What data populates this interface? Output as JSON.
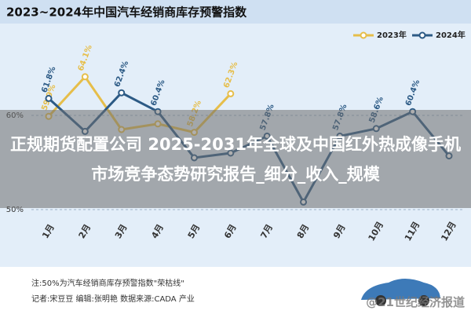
{
  "chart_data": {
    "type": "line",
    "title": "2023~2024年中国汽车经销商库存预警指数",
    "categories": [
      "1月",
      "2月",
      "3月",
      "4月",
      "5月",
      "6月",
      "7月",
      "8月",
      "9月",
      "10月",
      "11月",
      "12月"
    ],
    "series": [
      {
        "name": "2023年",
        "color": "#e6be4a",
        "values": [
          59.9,
          64.1,
          58.5,
          59.1,
          58.2,
          62.3,
          null,
          null,
          null,
          null,
          null,
          null
        ],
        "value_labels": [
          "59.9%",
          "64.1%",
          null,
          null,
          "58.2%",
          "62.3%",
          null,
          null,
          null,
          null,
          null,
          null
        ]
      },
      {
        "name": "2024年",
        "color": "#2c5a85",
        "values": [
          61.8,
          58.3,
          62.4,
          60.4,
          55.5,
          56.0,
          57.8,
          50.8,
          57.8,
          58.6,
          60.4,
          55.7
        ],
        "value_labels": [
          "61.8%",
          null,
          "62.4%",
          "60.4%",
          null,
          null,
          "57.8%",
          null,
          "57.8%",
          "58.6%",
          "60.4%",
          null
        ]
      }
    ],
    "ylim": [
      49.5,
      67
    ],
    "yticks": [
      {
        "value": 50,
        "label": "50%"
      },
      {
        "value": 60,
        "label": "60%"
      }
    ],
    "grid": true
  },
  "overlay": {
    "text": "正规期货配置公司 2025-2031年全球及中国红外热成像手机市场竞争态势研究报告_细分_收入_规模"
  },
  "footer": {
    "note": "注:50%为汽车经销商库存预警指数\"荣枯线\"",
    "credits": "记者:宋豆豆 编辑:张明艳 数据来源:CADA 产业",
    "watermark": "@21世纪经济报道"
  }
}
